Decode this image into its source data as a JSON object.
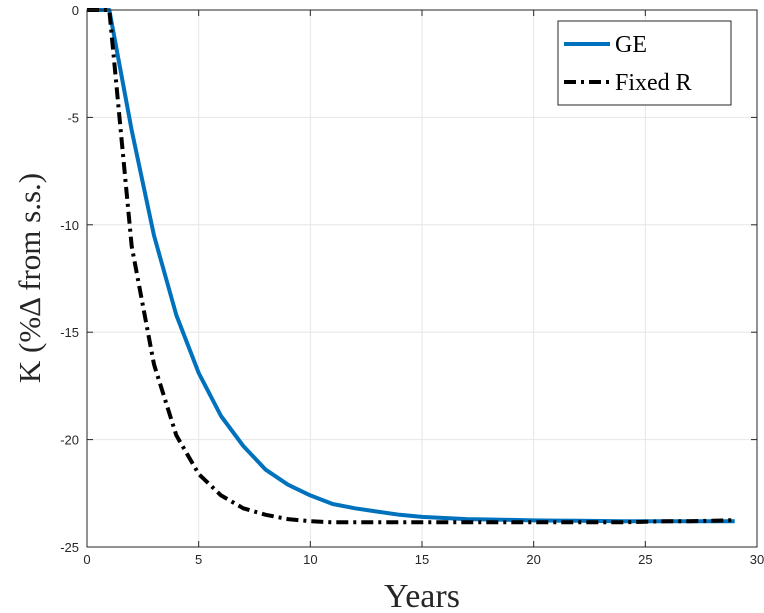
{
  "chart_data": {
    "type": "line",
    "title": "",
    "xlabel": "Years",
    "ylabel": "K (%Δ from s.s.)",
    "xlim": [
      0,
      30
    ],
    "ylim": [
      -25,
      0
    ],
    "xticks": [
      0,
      5,
      10,
      15,
      20,
      25,
      30
    ],
    "yticks": [
      0,
      -5,
      -10,
      -15,
      -20,
      -25
    ],
    "grid": true,
    "legend_position": "top-right",
    "series": [
      {
        "name": "GE",
        "color": "#0072BD",
        "style": "solid",
        "x": [
          0,
          1,
          2,
          3,
          4,
          5,
          6,
          7,
          8,
          9,
          10,
          11,
          12,
          13,
          14,
          15,
          16,
          17,
          18,
          19,
          20,
          21,
          22,
          23,
          24,
          25,
          26,
          27,
          28,
          29
        ],
        "values": [
          0,
          0,
          -5.6,
          -10.5,
          -14.2,
          -16.9,
          -18.9,
          -20.3,
          -21.4,
          -22.1,
          -22.6,
          -23.0,
          -23.2,
          -23.35,
          -23.5,
          -23.6,
          -23.65,
          -23.7,
          -23.72,
          -23.74,
          -23.76,
          -23.77,
          -23.78,
          -23.79,
          -23.8,
          -23.8,
          -23.8,
          -23.8,
          -23.8,
          -23.8
        ]
      },
      {
        "name": "Fixed R",
        "color": "#000000",
        "style": "dash-dot",
        "x": [
          0,
          1,
          2,
          3,
          4,
          5,
          6,
          7,
          8,
          9,
          10,
          11,
          12,
          13,
          14,
          15,
          16,
          17,
          18,
          19,
          20,
          21,
          22,
          23,
          24,
          25,
          26,
          27,
          28,
          29
        ],
        "values": [
          0,
          0,
          -11.0,
          -16.5,
          -19.8,
          -21.6,
          -22.6,
          -23.2,
          -23.5,
          -23.7,
          -23.8,
          -23.85,
          -23.85,
          -23.85,
          -23.85,
          -23.85,
          -23.85,
          -23.85,
          -23.85,
          -23.85,
          -23.85,
          -23.85,
          -23.85,
          -23.85,
          -23.85,
          -23.82,
          -23.8,
          -23.8,
          -23.78,
          -23.75
        ]
      }
    ]
  }
}
